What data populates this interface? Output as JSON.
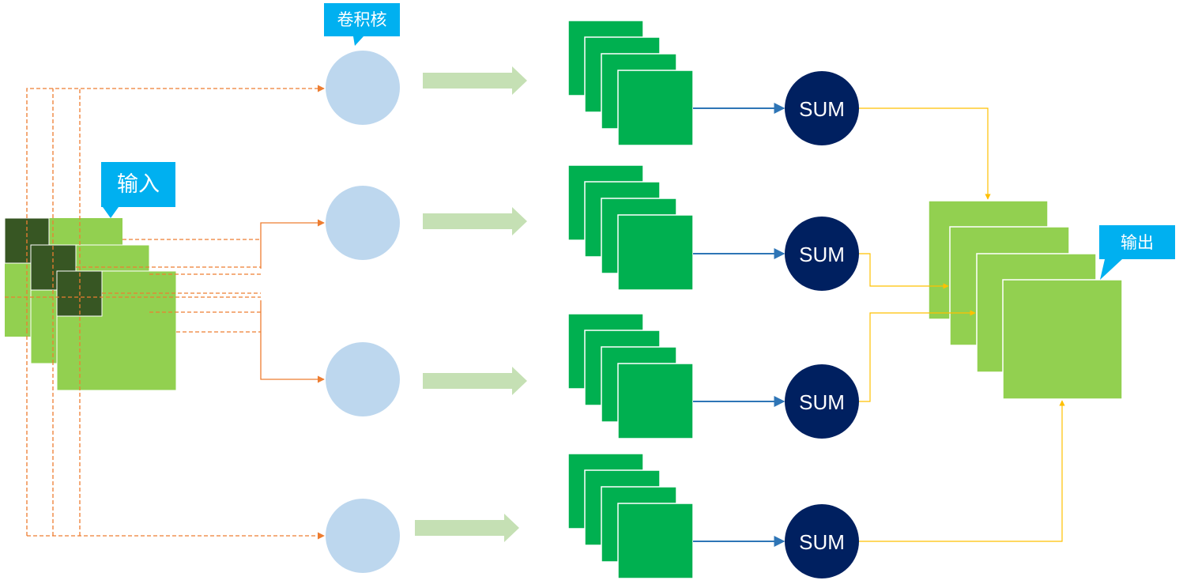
{
  "labels": {
    "kernel": "卷积核",
    "input": "输入",
    "output": "输出"
  },
  "sum_nodes": [
    {
      "label": "SUM"
    },
    {
      "label": "SUM"
    },
    {
      "label": "SUM"
    },
    {
      "label": "SUM"
    }
  ],
  "colors": {
    "input_fill": "#92D050",
    "window_fill": "#375623",
    "kernel_fill": "#BDD7EE",
    "feature_fill": "#00B050",
    "sum_fill": "#002060",
    "output_fill": "#92D050",
    "callout_fill": "#00B0F0",
    "dashed_line": "#ED7D31",
    "blue_line": "#2E75B6",
    "yellow_line": "#FFC000",
    "flow_arrow": "#C5E0B4"
  }
}
